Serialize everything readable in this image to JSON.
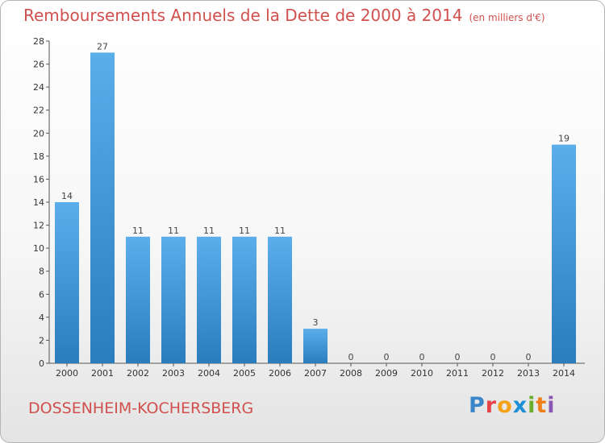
{
  "chart_data": {
    "type": "bar",
    "title": "Remboursements Annuels de la Dette de 2000 à 2014",
    "unit": "(en milliers d'€)",
    "categories": [
      "2000",
      "2001",
      "2002",
      "2003",
      "2004",
      "2005",
      "2006",
      "2007",
      "2008",
      "2009",
      "2010",
      "2011",
      "2012",
      "2013",
      "2014"
    ],
    "values": [
      14,
      27,
      11,
      11,
      11,
      11,
      11,
      3,
      0,
      0,
      0,
      0,
      0,
      0,
      19
    ],
    "ylim": [
      0,
      28
    ],
    "yticks": [
      0,
      2,
      4,
      6,
      8,
      10,
      12,
      14,
      16,
      18,
      20,
      22,
      24,
      26,
      28
    ],
    "grid": false,
    "bar_color_top": "#5aaeea",
    "bar_color_bottom": "#2a7dbd"
  },
  "commune": "DOSSENHEIM-KOCHERSBERG",
  "logo": {
    "letters": [
      "P",
      "r",
      "o",
      "x",
      "i",
      "t",
      "i"
    ]
  },
  "colors": {
    "title": "#d0504d",
    "commune": "#d0504d"
  }
}
